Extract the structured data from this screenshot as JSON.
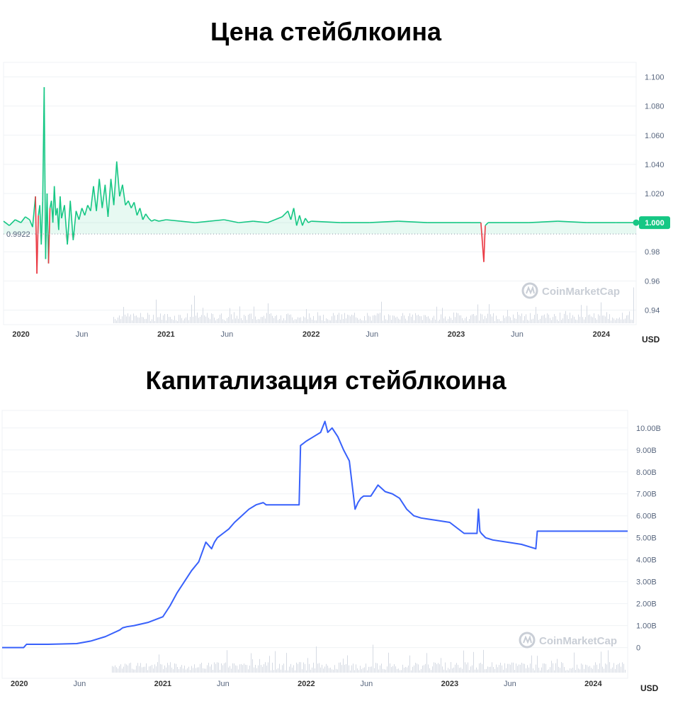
{
  "chart_data": [
    {
      "type": "area",
      "title": "Цена стейблкоина",
      "ylim": [
        0.93,
        1.11
      ],
      "y_ticks": [
        "1.100",
        "1.080",
        "1.060",
        "1.040",
        "1.020",
        "1.000",
        "0.98",
        "0.96",
        "0.94"
      ],
      "y_tick_values": [
        1.1,
        1.08,
        1.06,
        1.04,
        1.02,
        1.0,
        0.98,
        0.96,
        0.94
      ],
      "x_ticks": [
        {
          "label": "2020",
          "t": 2020.0,
          "year": true
        },
        {
          "label": "Jun",
          "t": 2020.42,
          "year": false
        },
        {
          "label": "2021",
          "t": 2021.0,
          "year": true
        },
        {
          "label": "Jun",
          "t": 2021.42,
          "year": false
        },
        {
          "label": "2022",
          "t": 2022.0,
          "year": true
        },
        {
          "label": "Jun",
          "t": 2022.42,
          "year": false
        },
        {
          "label": "2023",
          "t": 2023.0,
          "year": true
        },
        {
          "label": "Jun",
          "t": 2023.42,
          "year": false
        },
        {
          "label": "2024",
          "t": 2024.0,
          "year": true
        }
      ],
      "xlim": [
        2019.88,
        2024.24
      ],
      "baseline_value": 0.9922,
      "baseline_label": "0.9922",
      "current_value": 1.0,
      "current_label": "1.000",
      "unit": "USD",
      "watermark": "CoinMarketCap",
      "grid": true,
      "colors": {
        "up": "#16c784",
        "down": "#ea3943",
        "grid": "#eff2f5",
        "badge": "#16c784"
      },
      "series": [
        {
          "x": [
            2019.88,
            2019.92,
            2019.96,
            2020.0,
            2020.03,
            2020.06,
            2020.08,
            2020.1,
            2020.11,
            2020.12,
            2020.13,
            2020.14,
            2020.15,
            2020.16,
            2020.17,
            2020.18,
            2020.19,
            2020.2,
            2020.21,
            2020.22,
            2020.23,
            2020.24,
            2020.25,
            2020.26,
            2020.27,
            2020.28,
            2020.3,
            2020.32,
            2020.34,
            2020.36,
            2020.38,
            2020.4,
            2020.42,
            2020.44,
            2020.46,
            2020.48,
            2020.5,
            2020.52,
            2020.54,
            2020.56,
            2020.58,
            2020.6,
            2020.62,
            2020.64,
            2020.66,
            2020.68,
            2020.7,
            2020.72,
            2020.74,
            2020.76,
            2020.78,
            2020.8,
            2020.82,
            2020.84,
            2020.86,
            2020.88,
            2020.9,
            2020.92,
            2020.95,
            2021.0,
            2021.1,
            2021.2,
            2021.3,
            2021.4,
            2021.5,
            2021.6,
            2021.7,
            2021.75,
            2021.8,
            2021.84,
            2021.86,
            2021.88,
            2021.9,
            2021.92,
            2021.94,
            2021.96,
            2021.98,
            2022.0,
            2022.2,
            2022.4,
            2022.6,
            2022.8,
            2023.0,
            2023.1,
            2023.17,
            2023.19,
            2023.2,
            2023.22,
            2023.3,
            2023.5,
            2023.7,
            2023.9,
            2024.1,
            2024.24
          ],
          "y": [
            1.001,
            0.998,
            1.002,
            1.0,
            1.004,
            1.002,
            0.997,
            1.018,
            0.965,
            1.005,
            1.012,
            0.985,
            1.015,
            1.093,
            0.975,
            1.02,
            0.972,
            1.01,
            1.015,
            1.0,
            1.025,
            1.005,
            1.01,
            0.995,
            1.018,
            1.003,
            1.012,
            0.985,
            1.015,
            0.988,
            1.008,
            1.002,
            1.01,
            1.005,
            1.012,
            1.008,
            1.025,
            1.008,
            1.03,
            1.01,
            1.026,
            1.004,
            1.03,
            1.012,
            1.042,
            1.018,
            1.026,
            1.012,
            1.015,
            1.01,
            1.014,
            1.005,
            1.01,
            1.002,
            1.006,
            1.003,
            1.001,
            1.002,
            1.001,
            1.002,
            1.001,
            1.0,
            1.001,
            1.002,
            1.0,
            1.001,
            1.0,
            1.002,
            1.004,
            1.008,
            1.002,
            1.01,
            0.998,
            1.005,
            0.998,
            1.003,
            1.0,
            1.001,
            1.0,
            1.0,
            1.001,
            1.0,
            1.0,
            1.0,
            1.0,
            0.973,
            0.998,
            1.0,
            1.0,
            1.0,
            1.001,
            1.0,
            1.0,
            1.0
          ]
        }
      ]
    },
    {
      "type": "line",
      "title": "Капитализация стейблкоина",
      "ylim": [
        -1.4,
        10.8
      ],
      "y_ticks": [
        "10.00B",
        "9.00B",
        "8.00B",
        "7.00B",
        "6.00B",
        "5.00B",
        "4.00B",
        "3.00B",
        "2.00B",
        "1.00B",
        "0"
      ],
      "y_tick_values": [
        10,
        9,
        8,
        7,
        6,
        5,
        4,
        3,
        2,
        1,
        0
      ],
      "x_ticks": [
        {
          "label": "2020",
          "t": 2020.0,
          "year": true
        },
        {
          "label": "Jun",
          "t": 2020.42,
          "year": false
        },
        {
          "label": "2021",
          "t": 2021.0,
          "year": true
        },
        {
          "label": "Jun",
          "t": 2021.42,
          "year": false
        },
        {
          "label": "2022",
          "t": 2022.0,
          "year": true
        },
        {
          "label": "Jun",
          "t": 2022.42,
          "year": false
        },
        {
          "label": "2023",
          "t": 2023.0,
          "year": true
        },
        {
          "label": "Jun",
          "t": 2023.42,
          "year": false
        },
        {
          "label": "2024",
          "t": 2024.0,
          "year": true
        }
      ],
      "xlim": [
        2019.88,
        2024.24
      ],
      "unit": "USD",
      "watermark": "CoinMarketCap",
      "grid": true,
      "colors": {
        "line": "#3861fb",
        "grid": "#eff2f5"
      },
      "series": [
        {
          "x": [
            2019.88,
            2020.03,
            2020.05,
            2020.2,
            2020.4,
            2020.5,
            2020.6,
            2020.7,
            2020.72,
            2020.75,
            2020.8,
            2020.9,
            2021.0,
            2021.05,
            2021.1,
            2021.15,
            2021.2,
            2021.25,
            2021.3,
            2021.34,
            2021.36,
            2021.38,
            2021.42,
            2021.46,
            2021.5,
            2021.55,
            2021.6,
            2021.65,
            2021.7,
            2021.72,
            2021.75,
            2021.8,
            2021.9,
            2021.95,
            2021.96,
            2022.0,
            2022.05,
            2022.1,
            2022.13,
            2022.15,
            2022.18,
            2022.22,
            2022.26,
            2022.3,
            2022.34,
            2022.36,
            2022.38,
            2022.4,
            2022.45,
            2022.5,
            2022.55,
            2022.6,
            2022.65,
            2022.7,
            2022.75,
            2022.8,
            2022.85,
            2022.9,
            2023.0,
            2023.1,
            2023.12,
            2023.19,
            2023.2,
            2023.21,
            2023.22,
            2023.25,
            2023.3,
            2023.4,
            2023.5,
            2023.6,
            2023.61,
            2023.65,
            2023.7,
            2023.8,
            2023.9,
            2024.0,
            2024.1,
            2024.24
          ],
          "y": [
            0.0,
            0.0,
            0.15,
            0.15,
            0.18,
            0.3,
            0.5,
            0.8,
            0.9,
            0.95,
            1.0,
            1.15,
            1.4,
            1.9,
            2.5,
            3.0,
            3.5,
            3.9,
            4.8,
            4.5,
            4.8,
            5.0,
            5.2,
            5.4,
            5.7,
            6.0,
            6.3,
            6.5,
            6.6,
            6.5,
            6.5,
            6.5,
            6.5,
            6.5,
            9.2,
            9.4,
            9.6,
            9.8,
            10.3,
            9.8,
            10.0,
            9.6,
            9.0,
            8.5,
            6.3,
            6.6,
            6.8,
            6.9,
            6.9,
            7.4,
            7.1,
            7.0,
            6.8,
            6.3,
            6.0,
            5.9,
            5.85,
            5.8,
            5.7,
            5.2,
            5.2,
            5.2,
            6.3,
            5.3,
            5.2,
            5.0,
            4.9,
            4.8,
            4.7,
            4.5,
            5.3,
            5.3,
            5.3,
            5.3,
            5.3,
            5.3,
            5.3,
            5.3
          ]
        }
      ]
    }
  ]
}
